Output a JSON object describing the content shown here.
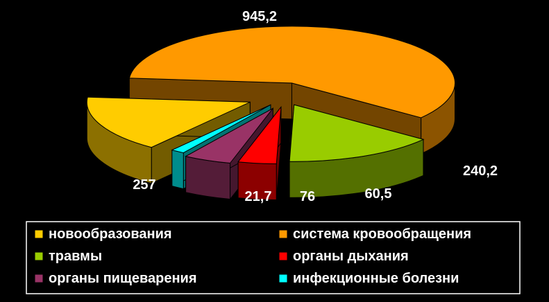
{
  "chart_data": {
    "type": "pie",
    "style": "3d-exploded",
    "title": "",
    "categories": [
      "система кровообращения",
      "травмы",
      "органы дыхания",
      "органы пищеварения",
      "инфекционные болезни",
      "новообразования"
    ],
    "values": [
      945.2,
      240.2,
      60.5,
      76,
      21.7,
      257
    ],
    "value_labels": [
      "945,2",
      "240,2",
      "60,5",
      "76",
      "21,7",
      "257"
    ],
    "colors": [
      "#FF9900",
      "#99CC00",
      "#FF0000",
      "#993366",
      "#00FFFF",
      "#FFCC00"
    ],
    "legend": {
      "placement": "bottom",
      "order": [
        "новообразования",
        "система кровообращения",
        "травмы",
        "органы дыхания",
        "органы пищеварения",
        "инфекционные болезни"
      ]
    },
    "background": "#000000"
  }
}
